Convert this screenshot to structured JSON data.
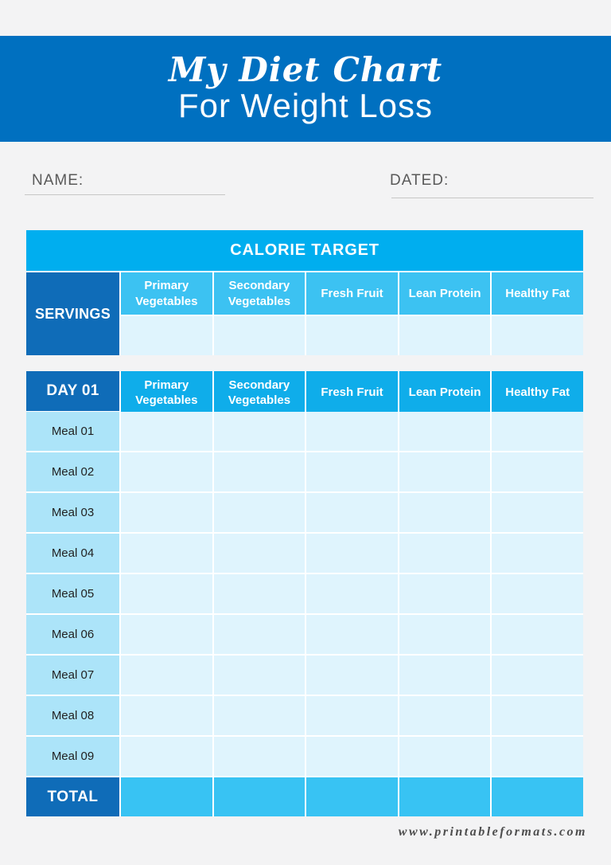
{
  "header": {
    "title_script": "My Diet Chart",
    "subtitle": "For Weight Loss",
    "background": "#0070c0"
  },
  "fields": {
    "name_label": "NAME:",
    "name_value": "",
    "dated_label": "DATED:",
    "dated_value": ""
  },
  "columns": [
    "Primary Vegetables",
    "Secondary Vegetables",
    "Fresh Fruit",
    "Lean Protein",
    "Healthy Fat"
  ],
  "calorie_target_table": {
    "title": "CALORIE TARGET",
    "row_label": "SERVINGS",
    "values": [
      "",
      "",
      "",
      "",
      ""
    ]
  },
  "day_table": {
    "day_label": "DAY 01",
    "meals": [
      "Meal 01",
      "Meal 02",
      "Meal 03",
      "Meal 04",
      "Meal 05",
      "Meal 06",
      "Meal 07",
      "Meal 08",
      "Meal 09"
    ],
    "total_label": "TOTAL",
    "totals": [
      "",
      "",
      "",
      "",
      ""
    ]
  },
  "footer": {
    "website": "www.printableformats.com"
  },
  "colors": {
    "page_background": "#f3f3f4",
    "band_blue": "#0070c0",
    "title_bar_cyan": "#00aeef",
    "header_light_cyan": "#3cc2f2",
    "header_mid_cyan": "#0fadea",
    "dark_blue_cell": "#0f6cb8",
    "blank_cell": "#dff4fd",
    "meal_label_cell": "#ace4f9",
    "total_row_cyan": "#38c3f3",
    "label_gray": "#595959",
    "footer_gray": "#4d4d4d"
  }
}
